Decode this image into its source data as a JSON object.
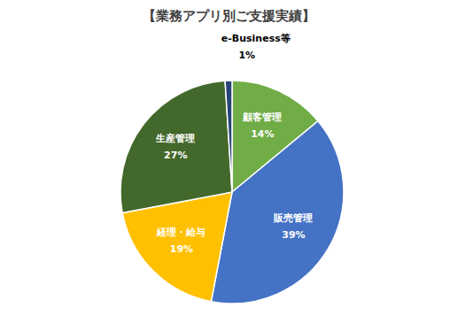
{
  "chart_data": {
    "type": "pie",
    "title": "【業務アプリ別ご支援実績】",
    "categories": [
      "顧客管理",
      "販売管理",
      "経理・給与",
      "生産管理",
      "e-Business等"
    ],
    "values": [
      14,
      39,
      19,
      27,
      1
    ],
    "value_labels": [
      "14%",
      "39%",
      "19%",
      "27%",
      "1%"
    ],
    "colors": [
      "#70ad47",
      "#4472c4",
      "#ffc000",
      "#43682b",
      "#264478"
    ],
    "data_labels": true
  }
}
